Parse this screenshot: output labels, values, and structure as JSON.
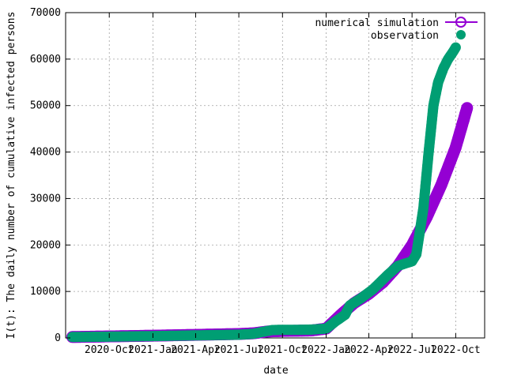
{
  "chart_data": {
    "type": "scatter",
    "title": "",
    "xlabel": "date",
    "ylabel": "I(t): The daily number of cumulative infected persons",
    "xlim": [
      "2020-07-01",
      "2022-12-01"
    ],
    "ylim": [
      0,
      70000
    ],
    "x_ticks": [
      {
        "date": "2020-10-01",
        "label": "2020-Oct"
      },
      {
        "date": "2021-01-01",
        "label": "2021-Jan"
      },
      {
        "date": "2021-04-01",
        "label": "2021-Apr"
      },
      {
        "date": "2021-07-01",
        "label": "2021-Jul"
      },
      {
        "date": "2021-10-01",
        "label": "2021-Oct"
      },
      {
        "date": "2022-01-01",
        "label": "2022-Jan"
      },
      {
        "date": "2022-04-01",
        "label": "2022-Apr"
      },
      {
        "date": "2022-07-01",
        "label": "2022-Jul"
      },
      {
        "date": "2022-10-01",
        "label": "2022-Oct"
      }
    ],
    "y_ticks": [
      0,
      10000,
      20000,
      30000,
      40000,
      50000,
      60000,
      70000
    ],
    "grid": true,
    "legend_position": "top-right",
    "series": [
      {
        "name": "numerical simulation",
        "color": "#9400d3",
        "style": "line-with-open-circles",
        "points": [
          [
            "2020-07-15",
            200
          ],
          [
            "2020-09-01",
            280
          ],
          [
            "2020-11-01",
            380
          ],
          [
            "2021-01-01",
            480
          ],
          [
            "2021-03-01",
            600
          ],
          [
            "2021-05-01",
            720
          ],
          [
            "2021-07-01",
            850
          ],
          [
            "2021-08-01",
            1000
          ],
          [
            "2021-09-01",
            1400
          ],
          [
            "2021-10-01",
            1500
          ],
          [
            "2021-11-01",
            1550
          ],
          [
            "2021-12-01",
            1600
          ],
          [
            "2022-01-01",
            2000
          ],
          [
            "2022-02-01",
            5000
          ],
          [
            "2022-03-01",
            7500
          ],
          [
            "2022-04-01",
            9500
          ],
          [
            "2022-05-01",
            12000
          ],
          [
            "2022-06-01",
            15500
          ],
          [
            "2022-07-01",
            20000
          ],
          [
            "2022-08-01",
            26000
          ],
          [
            "2022-09-01",
            33000
          ],
          [
            "2022-10-01",
            41000
          ],
          [
            "2022-10-25",
            49500
          ]
        ]
      },
      {
        "name": "observation",
        "color": "#009e73",
        "style": "filled-circles",
        "points": [
          [
            "2020-07-15",
            200
          ],
          [
            "2020-09-01",
            250
          ],
          [
            "2020-11-01",
            320
          ],
          [
            "2021-01-01",
            400
          ],
          [
            "2021-03-01",
            500
          ],
          [
            "2021-05-01",
            600
          ],
          [
            "2021-07-01",
            700
          ],
          [
            "2021-08-01",
            900
          ],
          [
            "2021-08-20",
            1300
          ],
          [
            "2021-09-10",
            1700
          ],
          [
            "2021-10-01",
            1750
          ],
          [
            "2021-11-01",
            1750
          ],
          [
            "2021-12-01",
            1800
          ],
          [
            "2022-01-01",
            2000
          ],
          [
            "2022-01-20",
            3500
          ],
          [
            "2022-02-10",
            5000
          ],
          [
            "2022-02-20",
            7000
          ],
          [
            "2022-03-15",
            8500
          ],
          [
            "2022-04-10",
            10500
          ],
          [
            "2022-05-10",
            13500
          ],
          [
            "2022-06-01",
            15500
          ],
          [
            "2022-07-01",
            16500
          ],
          [
            "2022-07-10",
            18000
          ],
          [
            "2022-07-25",
            28000
          ],
          [
            "2022-08-05",
            40000
          ],
          [
            "2022-08-15",
            50000
          ],
          [
            "2022-08-25",
            55000
          ],
          [
            "2022-09-05",
            58000
          ],
          [
            "2022-09-15",
            60000
          ],
          [
            "2022-09-25",
            61500
          ],
          [
            "2022-10-01",
            62500
          ]
        ]
      }
    ]
  }
}
